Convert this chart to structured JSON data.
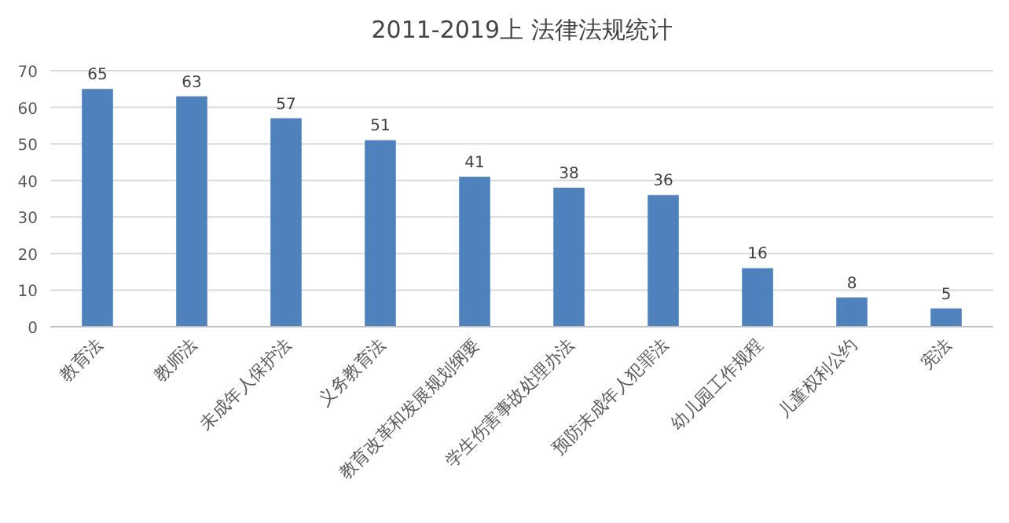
{
  "chart_data": {
    "type": "bar",
    "title": "2011-2019上  法律法规统计",
    "categories": [
      "教育法",
      "教师法",
      "未成年人保护法",
      "义务教育法",
      "教育改革和发展规划纲要",
      "学生伤害事故处理办法",
      "预防未成年人犯罪法",
      "幼儿园工作规程",
      "儿童权利公约",
      "宪法"
    ],
    "values": [
      65,
      63,
      57,
      51,
      41,
      38,
      36,
      16,
      8,
      5
    ],
    "color": "#4f81bd",
    "ylim": [
      0,
      70
    ],
    "yticks": [
      0,
      10,
      20,
      30,
      40,
      50,
      60,
      70
    ],
    "grid": "y",
    "data_labels": true
  }
}
